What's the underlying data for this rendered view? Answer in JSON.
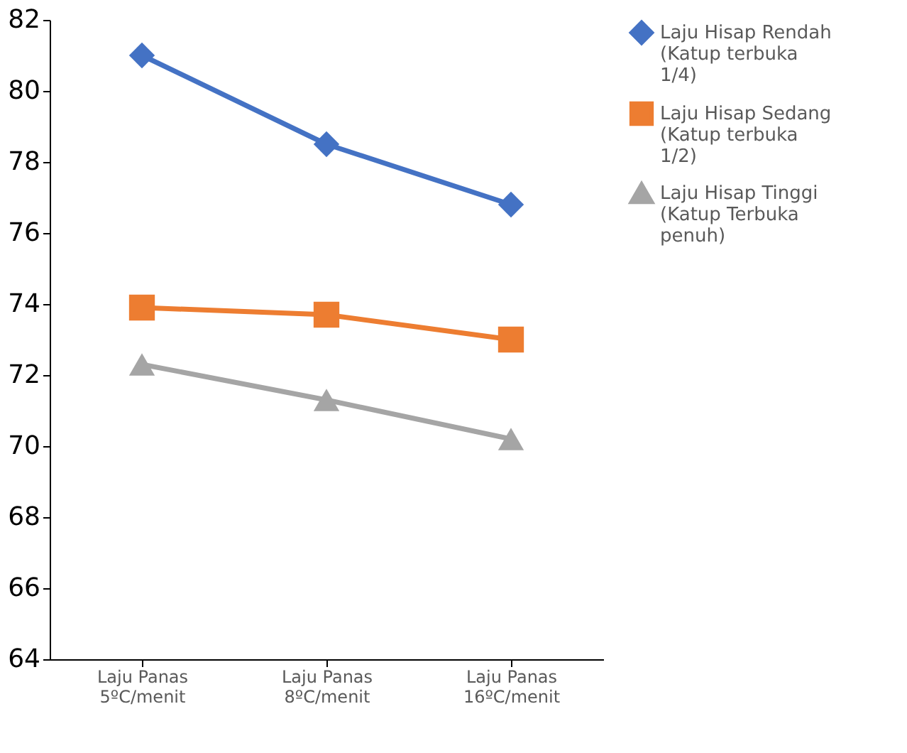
{
  "chart_data": {
    "type": "line",
    "categories": [
      "Laju Panas\n5ºC/menit",
      "Laju Panas\n8ºC/menit",
      "Laju Panas\n16ºC/menit"
    ],
    "series": [
      {
        "name": "Laju Hisap Rendah\n(Katup terbuka\n1/4)",
        "color": "#4472c4",
        "marker": "diamond",
        "values": [
          81.0,
          78.5,
          76.8
        ]
      },
      {
        "name": "Laju Hisap Sedang\n(Katup terbuka\n1/2)",
        "color": "#ed7d31",
        "marker": "square",
        "values": [
          73.9,
          73.7,
          73.0
        ]
      },
      {
        "name": "Laju Hisap Tinggi\n(Katup Terbuka\npenuh)",
        "color": "#a5a5a5",
        "marker": "triangle",
        "values": [
          72.3,
          71.3,
          70.2
        ]
      }
    ],
    "ylim": [
      64,
      82
    ],
    "yticks": [
      64,
      66,
      68,
      70,
      72,
      74,
      76,
      78,
      80,
      82
    ],
    "grid": false,
    "legend": "right",
    "line_style": "solid"
  }
}
